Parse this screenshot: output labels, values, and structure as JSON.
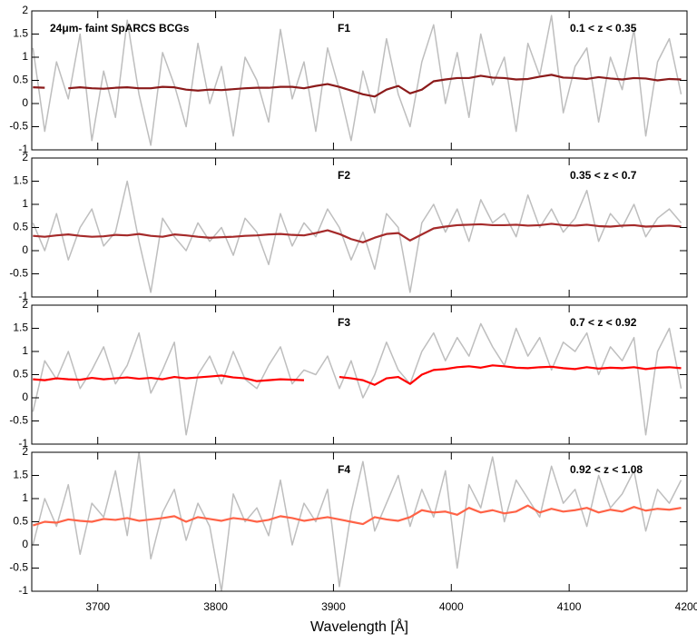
{
  "chart_data": [
    {
      "type": "line",
      "title": "24μm- faint SpARCS BCGs",
      "label": "F1",
      "annotation": "0.1 < z < 0.35",
      "x": [
        3645,
        3655,
        3665,
        3675,
        3685,
        3695,
        3705,
        3715,
        3725,
        3735,
        3745,
        3755,
        3765,
        3775,
        3785,
        3795,
        3805,
        3815,
        3825,
        3835,
        3845,
        3855,
        3865,
        3875,
        3885,
        3895,
        3905,
        3915,
        3925,
        3935,
        3945,
        3955,
        3965,
        3975,
        3985,
        3995,
        4005,
        4015,
        4025,
        4035,
        4045,
        4055,
        4065,
        4075,
        4085,
        4095,
        4105,
        4115,
        4125,
        4135,
        4145,
        4155,
        4165,
        4175,
        4185,
        4195
      ],
      "series": [
        {
          "color": "#bebebe",
          "values": [
            1.2,
            -0.6,
            0.9,
            0.1,
            1.5,
            -0.8,
            0.7,
            -0.3,
            1.8,
            0.2,
            -0.9,
            1.1,
            0.4,
            -0.5,
            1.3,
            0.0,
            0.8,
            -0.7,
            1.0,
            0.5,
            -0.4,
            1.6,
            0.1,
            0.9,
            -0.6,
            1.2,
            0.3,
            -0.8,
            0.7,
            -0.2,
            1.4,
            0.2,
            -0.5,
            0.9,
            1.7,
            0.0,
            1.1,
            -0.3,
            1.5,
            0.4,
            1.0,
            -0.6,
            1.3,
            0.6,
            1.9,
            -0.2,
            0.8,
            1.2,
            -0.4,
            1.0,
            0.3,
            1.6,
            -0.7,
            0.9,
            1.4,
            0.2
          ]
        },
        {
          "color": "#8b1a1a",
          "values": [
            0.35,
            0.34,
            null,
            0.33,
            0.35,
            0.33,
            0.32,
            0.34,
            0.35,
            0.33,
            0.33,
            0.36,
            0.35,
            0.3,
            0.28,
            0.3,
            0.29,
            0.31,
            0.33,
            0.34,
            0.34,
            0.36,
            0.36,
            0.33,
            0.38,
            0.42,
            0.36,
            0.28,
            0.2,
            0.15,
            0.3,
            0.38,
            0.22,
            0.3,
            0.48,
            0.52,
            0.55,
            0.55,
            0.6,
            0.56,
            0.55,
            0.52,
            0.53,
            0.58,
            0.62,
            0.56,
            0.55,
            0.53,
            0.57,
            0.54,
            0.52,
            0.55,
            0.54,
            0.5,
            0.53,
            0.52
          ]
        }
      ],
      "xlim": [
        3644,
        4200
      ],
      "ylim": [
        -1,
        2
      ],
      "yticks": [
        -1,
        -0.5,
        0,
        0.5,
        1,
        1.5,
        2
      ],
      "xticks": [
        3700,
        3800,
        3900,
        4000,
        4100,
        4200
      ],
      "xtick_labels": false
    },
    {
      "type": "line",
      "label": "F2",
      "annotation": "0.35 < z < 0.7",
      "x": [
        3645,
        3655,
        3665,
        3675,
        3685,
        3695,
        3705,
        3715,
        3725,
        3735,
        3745,
        3755,
        3765,
        3775,
        3785,
        3795,
        3805,
        3815,
        3825,
        3835,
        3845,
        3855,
        3865,
        3875,
        3885,
        3895,
        3905,
        3915,
        3925,
        3935,
        3945,
        3955,
        3965,
        3975,
        3985,
        3995,
        4005,
        4015,
        4025,
        4035,
        4045,
        4055,
        4065,
        4075,
        4085,
        4095,
        4105,
        4115,
        4125,
        4135,
        4145,
        4155,
        4165,
        4175,
        4185,
        4195
      ],
      "series": [
        {
          "color": "#bebebe",
          "values": [
            0.6,
            0.0,
            0.8,
            -0.2,
            0.5,
            0.9,
            0.1,
            0.4,
            1.5,
            0.2,
            -0.9,
            0.7,
            0.3,
            0.0,
            0.6,
            0.2,
            0.5,
            -0.1,
            0.7,
            0.4,
            -0.3,
            0.8,
            0.1,
            0.6,
            0.3,
            0.9,
            0.5,
            -0.2,
            0.4,
            -0.4,
            0.8,
            0.5,
            -0.9,
            0.6,
            1.0,
            0.4,
            0.9,
            0.2,
            1.1,
            0.6,
            0.8,
            0.3,
            1.2,
            0.5,
            0.9,
            0.4,
            0.7,
            1.3,
            0.2,
            0.8,
            0.5,
            1.0,
            0.3,
            0.7,
            0.9,
            0.6
          ]
        },
        {
          "color": "#a52a2a",
          "values": [
            0.32,
            0.3,
            0.33,
            0.35,
            0.32,
            0.3,
            0.31,
            0.34,
            0.33,
            0.36,
            0.32,
            0.3,
            0.35,
            0.33,
            0.3,
            0.28,
            0.29,
            0.3,
            0.32,
            0.33,
            0.35,
            0.36,
            0.34,
            0.33,
            0.38,
            0.44,
            0.36,
            0.25,
            0.18,
            0.28,
            0.36,
            0.38,
            0.22,
            0.35,
            0.48,
            0.52,
            0.55,
            0.56,
            0.57,
            0.55,
            0.55,
            0.56,
            0.54,
            0.55,
            0.58,
            0.55,
            0.54,
            0.56,
            0.53,
            0.52,
            0.54,
            0.55,
            0.52,
            0.53,
            0.54,
            0.52
          ]
        }
      ],
      "xlim": [
        3644,
        4200
      ],
      "ylim": [
        -1,
        2
      ],
      "yticks": [
        -1,
        -0.5,
        0,
        0.5,
        1,
        1.5,
        2
      ],
      "xticks": [
        3700,
        3800,
        3900,
        4000,
        4100,
        4200
      ],
      "xtick_labels": false
    },
    {
      "type": "line",
      "label": "F3",
      "annotation": "0.7 < z < 0.92",
      "x": [
        3645,
        3655,
        3665,
        3675,
        3685,
        3695,
        3705,
        3715,
        3725,
        3735,
        3745,
        3755,
        3765,
        3775,
        3785,
        3795,
        3805,
        3815,
        3825,
        3835,
        3845,
        3855,
        3865,
        3875,
        3885,
        3895,
        3905,
        3915,
        3925,
        3935,
        3945,
        3955,
        3965,
        3975,
        3985,
        3995,
        4005,
        4015,
        4025,
        4035,
        4045,
        4055,
        4065,
        4075,
        4085,
        4095,
        4105,
        4115,
        4125,
        4135,
        4145,
        4155,
        4165,
        4175,
        4185,
        4195
      ],
      "series": [
        {
          "color": "#bebebe",
          "values": [
            -0.3,
            0.8,
            0.4,
            1.0,
            0.2,
            0.6,
            1.1,
            0.3,
            0.7,
            1.4,
            0.1,
            0.6,
            1.2,
            -0.8,
            0.5,
            0.9,
            0.3,
            1.0,
            0.4,
            0.2,
            0.7,
            1.1,
            0.3,
            0.6,
            0.5,
            0.9,
            0.2,
            0.8,
            0.0,
            0.5,
            1.2,
            0.6,
            0.3,
            1.0,
            1.4,
            0.8,
            1.3,
            0.9,
            1.6,
            1.1,
            0.7,
            1.5,
            0.9,
            1.3,
            0.6,
            1.2,
            1.0,
            1.4,
            0.5,
            1.1,
            0.8,
            1.3,
            -0.8,
            1.0,
            1.5,
            0.2
          ]
        },
        {
          "color": "#ff0000",
          "values": [
            0.4,
            0.38,
            0.42,
            0.4,
            0.39,
            0.43,
            0.4,
            0.42,
            0.44,
            0.41,
            0.43,
            0.4,
            0.45,
            0.42,
            0.44,
            0.46,
            0.48,
            0.44,
            0.42,
            0.36,
            0.38,
            0.4,
            0.39,
            0.38,
            null,
            null,
            0.45,
            0.42,
            0.38,
            0.28,
            0.42,
            0.45,
            0.3,
            0.5,
            0.6,
            0.62,
            0.66,
            0.68,
            0.65,
            0.7,
            0.68,
            0.65,
            0.64,
            0.66,
            0.67,
            0.64,
            0.62,
            0.66,
            0.63,
            0.65,
            0.64,
            0.66,
            0.62,
            0.65,
            0.66,
            0.64
          ]
        }
      ],
      "xlim": [
        3644,
        4200
      ],
      "ylim": [
        -1,
        2
      ],
      "yticks": [
        -1,
        -0.5,
        0,
        0.5,
        1,
        1.5,
        2
      ],
      "xticks": [
        3700,
        3800,
        3900,
        4000,
        4100,
        4200
      ],
      "xtick_labels": false
    },
    {
      "type": "line",
      "label": "F4",
      "annotation": "0.92 < z < 1.08",
      "xlabel": "Wavelength [Å]",
      "x": [
        3645,
        3655,
        3665,
        3675,
        3685,
        3695,
        3705,
        3715,
        3725,
        3735,
        3745,
        3755,
        3765,
        3775,
        3785,
        3795,
        3805,
        3815,
        3825,
        3835,
        3845,
        3855,
        3865,
        3875,
        3885,
        3895,
        3905,
        3915,
        3925,
        3935,
        3945,
        3955,
        3965,
        3975,
        3985,
        3995,
        4005,
        4015,
        4025,
        4035,
        4045,
        4055,
        4065,
        4075,
        4085,
        4095,
        4105,
        4115,
        4125,
        4135,
        4145,
        4155,
        4165,
        4175,
        4185,
        4195
      ],
      "series": [
        {
          "color": "#bebebe",
          "values": [
            0.0,
            1.0,
            0.4,
            1.3,
            -0.2,
            0.9,
            0.6,
            1.6,
            0.2,
            2.0,
            -0.3,
            0.7,
            1.2,
            0.1,
            0.9,
            0.4,
            -1.0,
            1.1,
            0.5,
            0.8,
            0.2,
            1.4,
            0.0,
            0.9,
            0.5,
            1.2,
            -0.9,
            0.7,
            1.8,
            0.3,
            0.9,
            1.5,
            0.4,
            1.2,
            0.6,
            1.6,
            -0.5,
            1.3,
            0.8,
            1.9,
            0.5,
            1.4,
            1.0,
            0.6,
            1.7,
            0.9,
            1.2,
            0.4,
            1.5,
            0.8,
            1.1,
            1.6,
            0.3,
            1.2,
            0.9,
            1.4
          ]
        },
        {
          "color": "#ff6347",
          "values": [
            0.42,
            0.5,
            0.48,
            0.55,
            0.52,
            0.5,
            0.56,
            0.54,
            0.58,
            0.52,
            0.55,
            0.58,
            0.62,
            0.5,
            0.6,
            0.56,
            0.52,
            0.58,
            0.55,
            0.5,
            0.54,
            0.62,
            0.58,
            0.52,
            0.56,
            0.6,
            0.55,
            0.5,
            0.45,
            0.6,
            0.55,
            0.52,
            0.6,
            0.75,
            0.7,
            0.72,
            0.65,
            0.8,
            0.7,
            0.75,
            0.68,
            0.72,
            0.85,
            0.7,
            0.78,
            0.72,
            0.75,
            0.8,
            0.7,
            0.76,
            0.72,
            0.82,
            0.74,
            0.78,
            0.76,
            0.8
          ]
        }
      ],
      "xlim": [
        3644,
        4200
      ],
      "ylim": [
        -1,
        2
      ],
      "yticks": [
        -1,
        -0.5,
        0,
        0.5,
        1,
        1.5,
        2
      ],
      "xticks": [
        3700,
        3800,
        3900,
        4000,
        4100,
        4200
      ],
      "xtick_labels": true
    }
  ]
}
